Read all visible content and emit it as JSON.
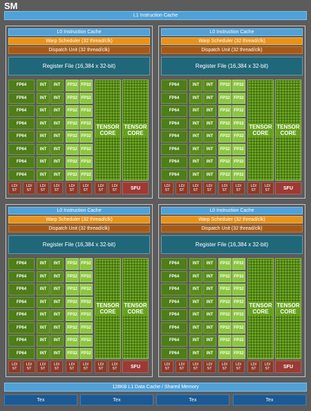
{
  "sm_title": "SM",
  "l1_instruction_cache": "L1 Instruction Cache",
  "partition": {
    "l0_cache": "L0 Instruction Cache",
    "warp_scheduler": "Warp Scheduler (32 thread/clk)",
    "dispatch_unit": "Dispatch Unit (32 thread/clk)",
    "register_file": "Register File (16,384 x 32-bit)",
    "fp64": "FP64",
    "int": "INT",
    "fp32": "FP32",
    "tensor_core_line1": "TENSOR",
    "tensor_core_line2": "CORE",
    "ldst_line1": "LD/",
    "ldst_line2": "ST",
    "sfu": "SFU"
  },
  "l1_data_cache": "128KB L1 Data Cache / Shared Memory",
  "tex": [
    "Tex",
    "Tex",
    "Tex",
    "Tex"
  ],
  "colors": {
    "background": "#5c5c5c",
    "cache_blue": "#4fa1d8",
    "warp_orange": "#e8921a",
    "dispatch_brown": "#a75a17",
    "register_teal": "#20677a",
    "fp64_green": "#4e7d1a",
    "fp32_green": "#8cc63f",
    "tensor_green": "#6aa420",
    "ldst_red": "#8a3a2a",
    "tex_blue": "#1b5a94"
  }
}
